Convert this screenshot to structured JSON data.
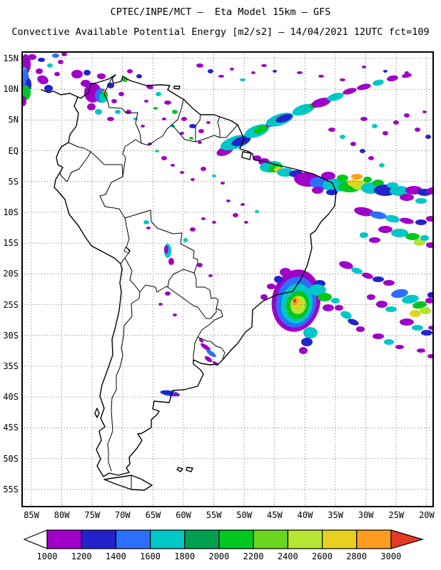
{
  "header": {
    "line1": "CPTEC/INPE/MCT —  Eta Model 15km — GFS",
    "line2": "Convective Available Potential Energy [m2/s2] — 14/04/2021 12UTC fct=109"
  },
  "map": {
    "lat_labels": [
      "15N",
      "10N",
      "5N",
      "EQ",
      "5S",
      "10S",
      "15S",
      "20S",
      "25S",
      "30S",
      "35S",
      "40S",
      "45S",
      "50S",
      "55S"
    ],
    "lon_labels": [
      "85W",
      "80W",
      "75W",
      "70W",
      "65W",
      "60W",
      "55W",
      "50W",
      "45W",
      "40W",
      "35W",
      "30W",
      "25W",
      "20W"
    ]
  },
  "colorbar": {
    "tick_labels": [
      "1000",
      "1200",
      "1400",
      "1600",
      "1800",
      "2000",
      "2200",
      "2400",
      "2600",
      "2800",
      "3000"
    ],
    "colors": [
      "#a000c8",
      "#2323cd",
      "#2d6eff",
      "#00c8c8",
      "#00a050",
      "#00c81e",
      "#69d71e",
      "#b4e632",
      "#e6d21e",
      "#ff9b1e"
    ],
    "left_arrow_color": "#ffffff",
    "right_arrow_color": "#e63c23",
    "outline_color": "#000000"
  }
}
